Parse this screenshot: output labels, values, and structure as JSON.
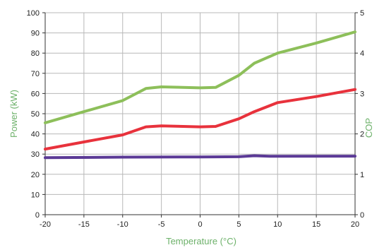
{
  "chart_data": {
    "type": "line",
    "title": "",
    "xlabel": "Temperature (°C)",
    "ylabel_left": "Power (kW)",
    "ylabel_right": "COP",
    "x_ticks": [
      -20,
      -15,
      -10,
      -5,
      0,
      5,
      10,
      15,
      20
    ],
    "y_left_ticks": [
      0,
      10,
      20,
      30,
      40,
      50,
      60,
      70,
      80,
      90,
      100
    ],
    "y_right_ticks": [
      0,
      1,
      2,
      3,
      4,
      5
    ],
    "xlim": [
      -20,
      20
    ],
    "ylim_left": [
      0,
      100
    ],
    "ylim_right": [
      0,
      5
    ],
    "grid": true,
    "legend": "none",
    "colors": {
      "ylabel_left": "#6db16a",
      "ylabel_right": "#6db16a",
      "xlabel": "#6db16a",
      "grid": "#b8b8b8",
      "axis": "#333333"
    },
    "series": [
      {
        "color": "#8dbf5a",
        "axis": "left",
        "points": [
          [
            -20,
            45.5
          ],
          [
            -15,
            51
          ],
          [
            -10,
            56.5
          ],
          [
            -7,
            62.5
          ],
          [
            -5,
            63.3
          ],
          [
            0,
            62.8
          ],
          [
            2,
            63
          ],
          [
            5,
            69
          ],
          [
            7,
            75
          ],
          [
            10,
            80
          ],
          [
            15,
            85
          ],
          [
            20,
            90.5
          ]
        ]
      },
      {
        "color": "#e8323c",
        "axis": "left",
        "points": [
          [
            -20,
            32.5
          ],
          [
            -15,
            36
          ],
          [
            -10,
            39.5
          ],
          [
            -7,
            43.5
          ],
          [
            -5,
            44
          ],
          [
            0,
            43.5
          ],
          [
            2,
            43.7
          ],
          [
            5,
            47.5
          ],
          [
            7,
            51
          ],
          [
            10,
            55.5
          ],
          [
            15,
            58.5
          ],
          [
            20,
            62
          ]
        ]
      },
      {
        "color": "#5b3a96",
        "axis": "left",
        "points": [
          [
            -20,
            28.2
          ],
          [
            -10,
            28.5
          ],
          [
            0,
            28.6
          ],
          [
            5,
            28.7
          ],
          [
            7,
            29.2
          ],
          [
            9,
            28.9
          ],
          [
            20,
            29
          ]
        ]
      }
    ]
  }
}
